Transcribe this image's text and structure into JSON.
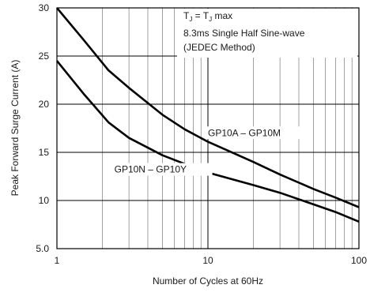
{
  "chart_data": {
    "type": "line",
    "x_scale": "log",
    "y_scale": "linear",
    "xlabel": "Number of Cycles at 60Hz",
    "ylabel": "Peak Forward Surge Current (A)",
    "xlim": [
      1,
      100
    ],
    "ylim": [
      5,
      30
    ],
    "x_ticks": [
      1,
      10,
      100
    ],
    "x_tick_labels": [
      "1",
      "10",
      "100"
    ],
    "y_ticks": [
      5,
      10,
      15,
      20,
      25,
      30
    ],
    "y_tick_labels": [
      "5.0",
      "10",
      "15",
      "20",
      "25",
      "30"
    ],
    "grid": true,
    "annotations": {
      "conditions_line1_parts": [
        "T",
        "J",
        " = T",
        "J",
        " max"
      ],
      "conditions_line2": "8.3ms Single Half Sine-wave",
      "conditions_line3": "(JEDEC Method)"
    },
    "series": [
      {
        "name": "GP10A – GP10M",
        "x": [
          1,
          1.5,
          2.2,
          3,
          5,
          7,
          10,
          20,
          30,
          50,
          70,
          100
        ],
        "y": [
          30,
          26.7,
          23.5,
          21.7,
          18.9,
          17.4,
          16.1,
          14.0,
          12.7,
          11.2,
          10.3,
          9.3
        ]
      },
      {
        "name": "GP10N – GP10Y",
        "x": [
          1,
          1.5,
          2.2,
          3,
          5,
          7,
          10,
          20,
          30,
          50,
          70,
          100
        ],
        "y": [
          24.5,
          21.1,
          18.1,
          16.5,
          14.7,
          13.8,
          12.9,
          11.6,
          10.8,
          9.6,
          8.8,
          7.8
        ]
      }
    ],
    "series_label_positions": [
      {
        "x": 10,
        "y": 16.7
      },
      {
        "x": 2.4,
        "y": 12.9
      }
    ],
    "colors": {
      "line": "#000000",
      "grid": "#8a8a8a",
      "frame": "#000000",
      "text": "#1a1a1a"
    }
  }
}
